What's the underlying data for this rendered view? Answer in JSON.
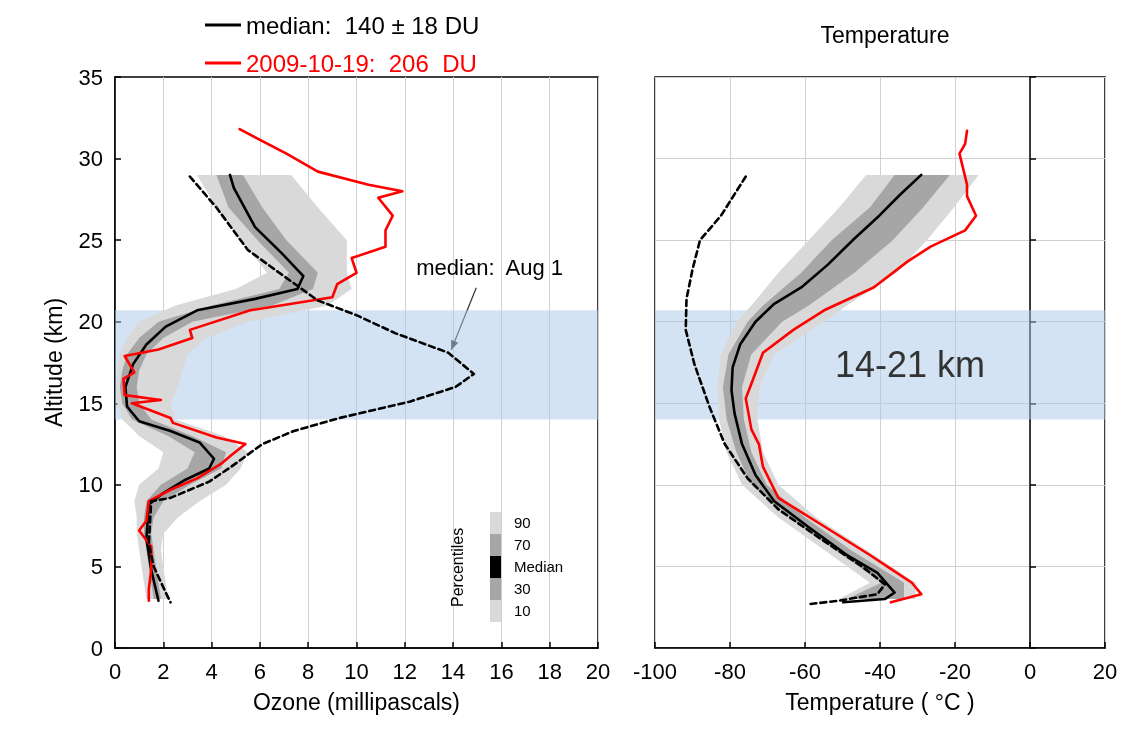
{
  "chart_data": [
    {
      "type": "line",
      "xlabel": "Ozone (millipascals)",
      "ylabel": "Altitude (km)",
      "xlim": [
        0,
        20
      ],
      "xticks": [
        0,
        2,
        4,
        6,
        8,
        10,
        12,
        14,
        16,
        18,
        20
      ],
      "ylim": [
        0,
        35
      ],
      "yticks": [
        0,
        5,
        10,
        15,
        20,
        25,
        30,
        35
      ],
      "grid": "x",
      "legend": "top",
      "legend_title": "Percentiles",
      "marker": "none",
      "annotations": [
        "90",
        "70",
        "Median",
        "30",
        "10",
        {
          "text": "median:  Aug 1",
          "x": 13.8,
          "y": 18.1
        }
      ],
      "bands": [
        {
          "axis": "y",
          "from": 14,
          "to": 20.7,
          "label": null,
          "color": "#a9c8e8"
        }
      ],
      "series": [
        {
          "type": "area",
          "color": "#d9d9d9",
          "x": [
            3.4,
            4.2,
            5.2,
            6.3,
            5.0,
            2.5,
            1.0,
            0.5,
            0.2,
            0.1,
            0.05,
            0.1,
            0.3,
            1.0,
            2.0,
            1.8,
            1.0,
            0.8,
            0.9,
            0.9,
            1.0,
            1.1,
            1.2,
            1.3,
            2.2,
            2.1,
            2.0,
            1.9,
            2.0,
            2.6,
            3.5,
            4.6,
            5.2,
            5.5,
            4.5,
            2.5,
            2.3,
            2.6,
            2.8,
            3.0,
            3.8,
            5.5,
            8.8,
            9.8,
            9.6,
            9.6,
            8.4,
            7.3
          ],
          "values": [
            29,
            27,
            25,
            23,
            22,
            21,
            20,
            19,
            18,
            17,
            16,
            15,
            14,
            13,
            12,
            11,
            10,
            9,
            8,
            7,
            6,
            5,
            4,
            3,
            3,
            4,
            5,
            6,
            7,
            8,
            9,
            10,
            11,
            12,
            13,
            14,
            15,
            16,
            17,
            18,
            19,
            20,
            21,
            22,
            23,
            25,
            27,
            29
          ]
        },
        {
          "type": "area",
          "color": "#a6a6a6",
          "x": [
            4.2,
            4.7,
            5.9,
            7.2,
            6.8,
            4.0,
            1.8,
            1.0,
            0.5,
            0.3,
            0.2,
            0.3,
            0.7,
            2.2,
            3.3,
            3.0,
            1.9,
            1.3,
            1.2,
            1.2,
            1.3,
            1.4,
            1.5,
            1.6,
            1.9,
            1.8,
            1.7,
            1.6,
            1.5,
            1.6,
            2.0,
            3.1,
            4.4,
            4.6,
            3.2,
            1.5,
            1.0,
            0.9,
            1.0,
            1.3,
            2.0,
            3.2,
            6.5,
            8.2,
            8.4,
            7.1,
            6.1,
            5.3
          ],
          "values": [
            29,
            27,
            25,
            23,
            22,
            21,
            20,
            19,
            18,
            17,
            16,
            15,
            14,
            13,
            12,
            11,
            10,
            9,
            8,
            7,
            6,
            5,
            4,
            3,
            3,
            4,
            5,
            6,
            7,
            8,
            9,
            10,
            11,
            12,
            13,
            14,
            15,
            16,
            17,
            18,
            19,
            20,
            21,
            22,
            23,
            25,
            27,
            29
          ]
        },
        {
          "name": "median:  140 ± 18 DU",
          "color": "#000000",
          "x": [
            4.76,
            4.92,
            5.8,
            6.9,
            7.8,
            7.55,
            5.8,
            3.4,
            2.1,
            1.3,
            0.75,
            0.43,
            0.5,
            1.0,
            2.3,
            3.5,
            4.1,
            3.9,
            2.9,
            2.0,
            1.4,
            1.3,
            1.5,
            1.8
          ],
          "values": [
            29.0,
            28.2,
            25.8,
            24.2,
            22.8,
            22.0,
            21.4,
            20.7,
            19.7,
            18.6,
            17.4,
            16.0,
            14.8,
            13.9,
            13.3,
            12.6,
            11.6,
            11.0,
            10.3,
            9.5,
            8.8,
            6.7,
            4.8,
            2.9
          ]
        },
        {
          "name": "2009-10-19:  206  DU",
          "color": "#ff0000",
          "x": [
            5.16,
            7.1,
            8.4,
            10.5,
            11.9,
            10.9,
            11.5,
            11.2,
            11.2,
            9.8,
            10.0,
            9.2,
            9.0,
            5.6,
            3.1,
            3.2,
            1.8,
            0.4,
            0.8,
            0.35,
            0.4,
            1.9,
            0.7,
            2.3,
            2.4,
            4.2,
            5.4,
            4.8,
            4.4,
            3.4,
            2.3,
            1.4,
            1.3,
            1.0,
            1.5,
            1.5,
            1.4,
            1.4
          ],
          "values": [
            31.8,
            30.3,
            29.2,
            28.4,
            28.0,
            27.6,
            26.5,
            25.6,
            24.6,
            23.9,
            23.0,
            22.3,
            21.5,
            20.7,
            19.5,
            19.0,
            18.3,
            17.9,
            16.9,
            16.5,
            15.5,
            15.2,
            15.0,
            14.1,
            13.8,
            12.9,
            12.5,
            11.8,
            11.3,
            10.4,
            9.7,
            9.0,
            7.8,
            7.2,
            6.2,
            4.8,
            3.6,
            2.9
          ]
        },
        {
          "color": "#000000",
          "line_style": "dashed",
          "x": [
            3.1,
            4.2,
            5.5,
            6.8,
            8.4,
            10.0,
            11.6,
            13.8,
            14.86,
            14.1,
            12.2,
            9.3,
            7.4,
            6.1,
            4.8,
            3.9,
            2.3,
            1.5,
            1.4,
            1.6,
            2.1,
            2.3
          ],
          "values": [
            28.9,
            27.0,
            24.4,
            23.0,
            21.3,
            20.4,
            19.3,
            18.1,
            16.8,
            16.0,
            15.1,
            14.1,
            13.3,
            12.5,
            11.1,
            10.2,
            9.2,
            9.0,
            6.4,
            5.0,
            3.4,
            2.8
          ]
        }
      ]
    },
    {
      "type": "line",
      "title": "Temperature",
      "xlabel": "Temperature ( °C )",
      "xlim": [
        -100,
        20
      ],
      "xticks": [
        -100,
        -80,
        -60,
        -40,
        -20,
        0,
        20
      ],
      "ylim": [
        0,
        35
      ],
      "yticks": [
        0,
        5,
        10,
        15,
        20,
        25,
        30,
        35
      ],
      "tick_labels": "x",
      "grid": true,
      "marker": "none",
      "bands": [
        {
          "axis": "y",
          "from": 14,
          "to": 20.7,
          "label": "14-21 km",
          "color": "#a9c8e8"
        }
      ],
      "series": [
        {
          "type": "area",
          "color": "#d9d9d9",
          "x": [
            -43.7,
            -50.9,
            -59.0,
            -67.1,
            -74.3,
            -78.3,
            -82.4,
            -83.4,
            -82.9,
            -80.9,
            -76.8,
            -67.1,
            -54.9,
            -42.7,
            -50.9,
            -30.5,
            -30.5,
            -43.7,
            -57.0,
            -67.1,
            -71.2,
            -72.7,
            -72.2,
            -68.2,
            -54.9,
            -48.8,
            -35.6,
            -27.5,
            -20.3,
            -13.7
          ],
          "values": [
            29,
            27,
            25,
            23,
            21,
            20,
            18,
            16,
            14,
            12,
            10,
            8,
            6,
            4,
            3,
            3,
            4,
            6,
            8,
            10,
            12,
            14,
            16,
            18,
            20,
            21,
            23,
            25,
            27,
            29
          ]
        },
        {
          "type": "area",
          "color": "#a6a6a6",
          "x": [
            -36.1,
            -42.7,
            -52.9,
            -61.0,
            -71.2,
            -75.3,
            -80.4,
            -81.9,
            -80.9,
            -78.3,
            -74.3,
            -64.1,
            -51.9,
            -39.7,
            -48.8,
            -33.6,
            -33.6,
            -47.8,
            -60.0,
            -70.2,
            -74.3,
            -76.3,
            -76.8,
            -74.3,
            -66.1,
            -59.0,
            -46.8,
            -36.6,
            -28.5,
            -21.4
          ],
          "values": [
            29,
            27,
            25,
            23,
            21,
            20,
            18,
            16,
            14,
            12,
            10,
            8,
            6,
            4,
            3,
            3,
            4,
            6,
            8,
            10,
            12,
            14,
            16,
            18,
            20,
            21,
            23,
            25,
            27,
            29
          ]
        },
        {
          "color": "#000000",
          "x": [
            -29.0,
            -34.6,
            -40.2,
            -46.8,
            -53.9,
            -61.0,
            -68.2,
            -73.2,
            -77.3,
            -79.3,
            -79.6,
            -78.8,
            -76.8,
            -73.2,
            -68.2,
            -59.0,
            -48.8,
            -40.7,
            -36.1,
            -38.7,
            -49.8
          ],
          "values": [
            29.0,
            27.8,
            26.5,
            25.1,
            23.5,
            22.1,
            21.1,
            20.0,
            18.6,
            17.2,
            15.8,
            14.4,
            12.5,
            10.6,
            9.0,
            7.4,
            5.7,
            4.6,
            3.4,
            3.0,
            2.8
          ]
        },
        {
          "color": "#ff0000",
          "x": [
            -16.8,
            -17.3,
            -18.8,
            -16.8,
            -16.8,
            -14.4,
            -17.3,
            -26.5,
            -32.6,
            -41.7,
            -54.9,
            -63.1,
            -71.2,
            -74.3,
            -75.8,
            -74.3,
            -72.3,
            -71.2,
            -67.1,
            -55.9,
            -42.7,
            -36.1,
            -31.5,
            -29.0,
            -37.1
          ],
          "values": [
            31.7,
            30.9,
            30.3,
            28.4,
            27.7,
            26.5,
            25.6,
            24.6,
            23.7,
            22.1,
            20.7,
            19.5,
            18.1,
            16.2,
            15.3,
            13.4,
            12.5,
            11.1,
            9.2,
            7.6,
            5.7,
            4.7,
            4.0,
            3.3,
            2.8
          ]
        },
        {
          "color": "#000000",
          "line_style": "dashed",
          "x": [
            -75.8,
            -82.4,
            -88.0,
            -90.0,
            -91.6,
            -91.8,
            -89.5,
            -85.5,
            -81.4,
            -75.3,
            -67.1,
            -55.9,
            -44.8,
            -38.7,
            -40.7,
            -50.9,
            -58.5
          ],
          "values": [
            28.9,
            26.5,
            25.0,
            23.2,
            21.4,
            19.5,
            17.4,
            14.8,
            12.5,
            10.4,
            8.5,
            6.7,
            5.0,
            3.9,
            3.3,
            2.9,
            2.7
          ]
        }
      ]
    }
  ]
}
